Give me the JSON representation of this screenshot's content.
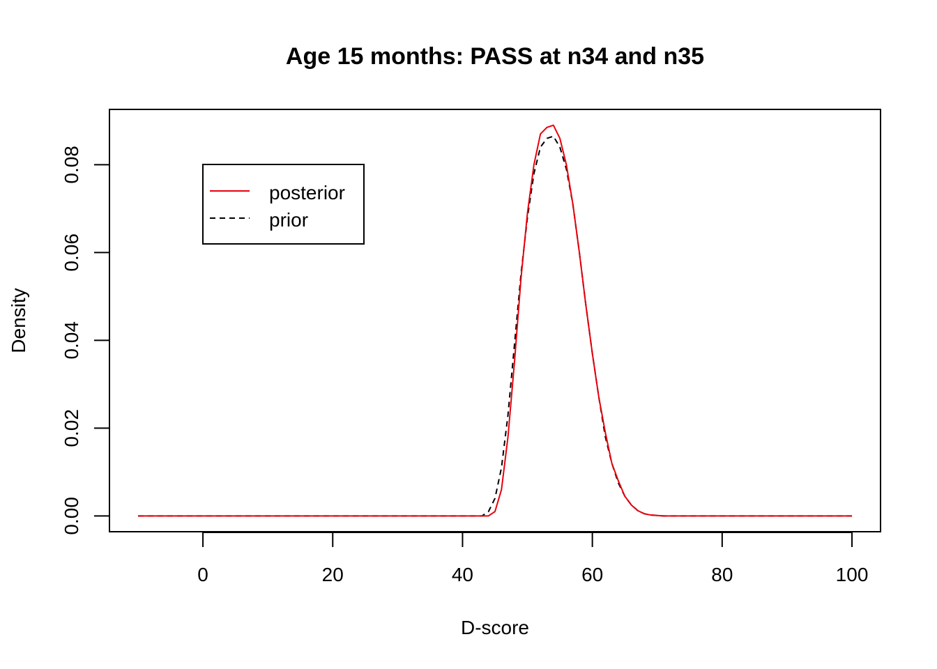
{
  "chart_data": {
    "type": "line",
    "title": "Age 15 months: PASS at n34 and n35",
    "xlabel": "D-score",
    "ylabel": "Density",
    "xlim": [
      -14.4,
      104.4
    ],
    "ylim": [
      -0.0036,
      0.0926
    ],
    "x_ticks": [
      0,
      20,
      40,
      60,
      80,
      100
    ],
    "x_tick_labels": [
      "0",
      "20",
      "40",
      "60",
      "80",
      "100"
    ],
    "y_ticks": [
      0.0,
      0.02,
      0.04,
      0.06,
      0.08
    ],
    "y_tick_labels": [
      "0.00",
      "0.02",
      "0.04",
      "0.06",
      "0.08"
    ],
    "grid": false,
    "legend_position": "top-left",
    "series": [
      {
        "name": "posterior",
        "color": "#e8000b",
        "style": "solid",
        "x": [
          -10,
          44,
          45,
          46,
          47,
          48,
          49,
          50,
          51,
          52,
          53,
          54,
          55,
          56,
          57,
          58,
          59,
          60,
          61,
          62,
          63,
          64,
          65,
          66,
          67,
          68,
          69,
          70,
          71,
          100
        ],
        "y": [
          0,
          0,
          0.001,
          0.006,
          0.018,
          0.035,
          0.054,
          0.069,
          0.08,
          0.087,
          0.0885,
          0.089,
          0.086,
          0.08,
          0.071,
          0.06,
          0.048,
          0.037,
          0.027,
          0.019,
          0.012,
          0.008,
          0.0045,
          0.0025,
          0.0012,
          0.0005,
          0.0002,
          0.0001,
          0,
          0
        ]
      },
      {
        "name": "prior",
        "color": "#000000",
        "style": "dashed",
        "x": [
          -10,
          43,
          44,
          45,
          46,
          47,
          48,
          49,
          50,
          51,
          52,
          53,
          54,
          55,
          56,
          57,
          58,
          59,
          60,
          61,
          62,
          63,
          64,
          65,
          66,
          67,
          68,
          69,
          70,
          71,
          100
        ],
        "y": [
          0,
          0,
          0.001,
          0.004,
          0.011,
          0.023,
          0.039,
          0.055,
          0.068,
          0.078,
          0.084,
          0.086,
          0.0865,
          0.084,
          0.079,
          0.071,
          0.06,
          0.048,
          0.037,
          0.027,
          0.018,
          0.012,
          0.0075,
          0.0045,
          0.0025,
          0.0012,
          0.0005,
          0.0002,
          0.0001,
          0,
          0
        ]
      }
    ]
  }
}
